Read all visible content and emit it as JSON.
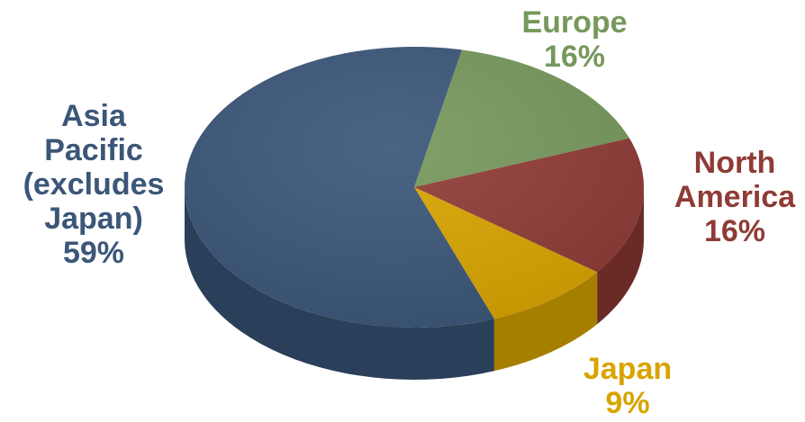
{
  "chart_data": {
    "type": "pie",
    "title": "",
    "slices": [
      {
        "label_lines": [
          "Asia",
          "Pacific",
          "(excludes",
          "Japan)"
        ],
        "value_label": "59%",
        "value": 59,
        "color": "#3b5678",
        "side_color": "#2a3f59"
      },
      {
        "label_lines": [
          "Europe"
        ],
        "value_label": "16%",
        "value": 16,
        "color": "#76985c",
        "side_color": "#5a7646"
      },
      {
        "label_lines": [
          "North",
          "America"
        ],
        "value_label": "16%",
        "value": 16,
        "color": "#8f3b36",
        "side_color": "#6a2b27"
      },
      {
        "label_lines": [
          "Japan"
        ],
        "value_label": "9%",
        "value": 9,
        "color": "#d8a400",
        "side_color": "#a77f00"
      }
    ]
  }
}
